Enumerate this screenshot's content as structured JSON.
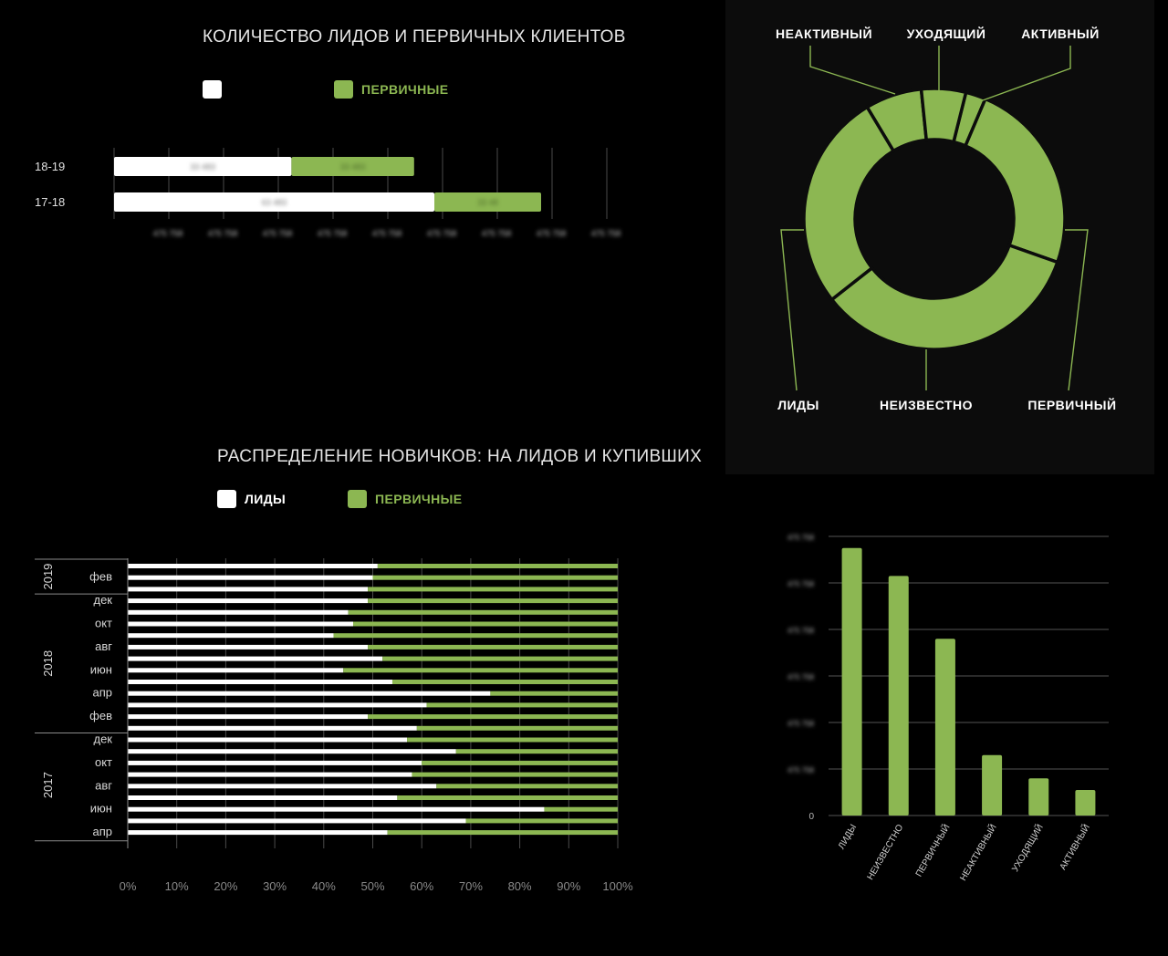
{
  "colors": {
    "white": "#ffffff",
    "green": "#8cb752",
    "panel": "#0c0c0c",
    "grid": "#4a4a4a"
  },
  "chart1": {
    "title": "КОЛИЧЕСТВО ЛИДОВ И ПЕРВИЧНЫХ КЛИЕНТОВ",
    "legend": [
      {
        "label": "",
        "color": "#ffffff"
      },
      {
        "label": "ПЕРВИЧНЫЕ",
        "color": "#8cb752"
      }
    ]
  },
  "chart2": {
    "title": "РАСПРЕДЕЛЕНИЕ НОВИЧКОВ: НА ЛИДОВ И КУПИВШИХ",
    "legend": [
      {
        "label": "ЛИДЫ",
        "color": "#ffffff"
      },
      {
        "label": "ПЕРВИЧНЫЕ",
        "color": "#8cb752"
      }
    ]
  },
  "chart_data": [
    {
      "id": "leads-primary-bars",
      "type": "bar",
      "orientation": "horizontal",
      "stacked": true,
      "title": "КОЛИЧЕСТВО ЛИДОВ И ПЕРВИЧНЫХ КЛИЕНТОВ",
      "categories": [
        "18-19",
        "17-18"
      ],
      "series": [
        {
          "name": "",
          "color": "#ffffff",
          "values": [
            32.4,
            58.5
          ],
          "value_labels": [
            "33 483",
            "63 483"
          ]
        },
        {
          "name": "ПЕРВИЧНЫЕ",
          "color": "#8cb752",
          "values": [
            22.4,
            19.5
          ],
          "value_labels": [
            "33 483",
            "33 48"
          ]
        }
      ],
      "xlim": [
        0,
        90
      ],
      "xticks": [
        10,
        20,
        30,
        40,
        50,
        60,
        70,
        80,
        90
      ],
      "xtick_labels": [
        "475 758",
        "475 758",
        "475 758",
        "475 758",
        "475 758",
        "475 758",
        "475 758",
        "475 758",
        "475 758"
      ],
      "grid": true,
      "legend_position": "top"
    },
    {
      "id": "donut-status",
      "type": "pie",
      "donut": true,
      "slices": [
        {
          "label": "АКТИВНЫЙ",
          "value": 2.5
        },
        {
          "label": "ПЕРВИЧНЫЙ",
          "value": 24
        },
        {
          "label": "НЕИЗВЕСТНО",
          "value": 34
        },
        {
          "label": "ЛИДЫ",
          "value": 27
        },
        {
          "label": "НЕАКТИВНЫЙ",
          "value": 7
        },
        {
          "label": "УХОДЯЩИЙ",
          "value": 5.5
        }
      ],
      "color": "#8cb752"
    },
    {
      "id": "newcomers-distribution",
      "type": "bar",
      "orientation": "horizontal",
      "stacked": true,
      "percent": true,
      "title": "РАСПРЕДЕЛЕНИЕ НОВИЧКОВ: НА ЛИДОВ И КУПИВШИХ",
      "series_names": [
        "ЛИДЫ",
        "ПЕРВИЧНЫЕ"
      ],
      "rows_top_to_bottom": [
        "2019-03",
        "2019-02",
        "2019-01",
        "2018-12",
        "2018-11",
        "2018-10",
        "2018-09",
        "2018-08",
        "2018-07",
        "2018-06",
        "2018-05",
        "2018-04",
        "2018-03",
        "2018-02",
        "2018-01",
        "2017-12",
        "2017-11",
        "2017-10",
        "2017-09",
        "2017-08",
        "2017-07",
        "2017-06",
        "2017-05",
        "2017-04"
      ],
      "leads_percent": [
        51,
        50,
        49,
        49,
        45,
        46,
        42,
        49,
        52,
        44,
        54,
        74,
        61,
        49,
        59,
        57,
        67,
        60,
        58,
        63,
        55,
        85,
        69,
        53
      ],
      "month_labels": [
        {
          "label": "фев",
          "row": 1
        },
        {
          "label": "дек",
          "row": 3
        },
        {
          "label": "окт",
          "row": 5
        },
        {
          "label": "авг",
          "row": 7
        },
        {
          "label": "июн",
          "row": 9
        },
        {
          "label": "апр",
          "row": 11
        },
        {
          "label": "фев",
          "row": 13
        },
        {
          "label": "дек",
          "row": 15
        },
        {
          "label": "окт",
          "row": 17
        },
        {
          "label": "авг",
          "row": 19
        },
        {
          "label": "июн",
          "row": 21
        },
        {
          "label": "апр",
          "row": 23
        }
      ],
      "year_groups": [
        {
          "label": "2019",
          "from": 0,
          "to": 2
        },
        {
          "label": "2018",
          "from": 3,
          "to": 14
        },
        {
          "label": "2017",
          "from": 15,
          "to": 23
        }
      ],
      "xlim": [
        0,
        100
      ],
      "xtick_labels": [
        "0%",
        "10%",
        "20%",
        "30%",
        "40%",
        "50%",
        "60%",
        "70%",
        "80%",
        "90%",
        "100%"
      ],
      "grid": true
    },
    {
      "id": "status-column",
      "type": "bar",
      "orientation": "vertical",
      "categories": [
        "ЛИДЫ",
        "НЕИЗВЕСТНО",
        "ПЕРВИЧНЫЙ",
        "НЕАКТИВНЫЙ",
        "УХОДЯЩИЙ",
        "АКТИВНЫЙ"
      ],
      "values": [
        5.75,
        5.15,
        3.8,
        1.3,
        0.8,
        0.55
      ],
      "ylim": [
        0,
        6
      ],
      "ytick_labels": [
        "0",
        "475 758",
        "475 758",
        "475 758",
        "475 758",
        "475 758",
        "475 758"
      ],
      "grid": true,
      "color": "#8cb752"
    }
  ]
}
